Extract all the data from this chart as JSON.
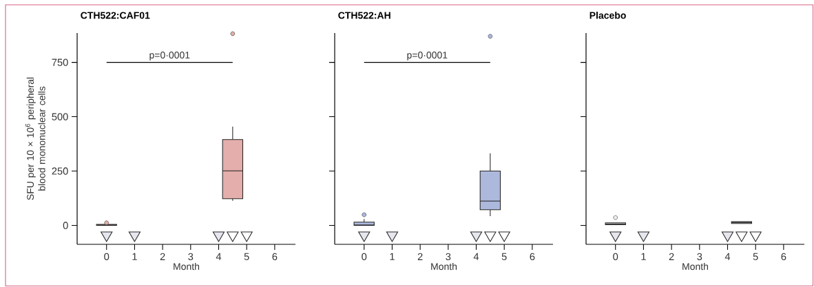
{
  "chart_data": [
    {
      "type": "box",
      "title": "CTH522:CAF01",
      "xlabel": "Month",
      "ylabel": "SFU per 10 × 10$^{6}$ peripheral blood mononuclear cells",
      "xlim": [
        -1.05,
        6.74
      ],
      "ylim": [
        -87,
        885
      ],
      "xticks": [
        0,
        1,
        2,
        3,
        4,
        5,
        6
      ],
      "yticks": [
        0,
        250,
        500,
        750
      ],
      "annotations": [
        "p=0·0001"
      ],
      "series": [
        {
          "x": [
            0,
            4.5
          ],
          "color": "#e3aeab",
          "boxes": [
            {
              "low": 0,
              "q1": 0,
              "median": 2,
              "q3": 5,
              "high": 5,
              "outliers": [
                12
              ]
            },
            {
              "low": 113,
              "q1": 123,
              "median": 251,
              "q3": 395,
              "high": 454,
              "outliers": [
                882
              ]
            }
          ]
        },
        {
          "type": "scatter",
          "x": [
            0,
            1,
            4
          ],
          "values": [
            -45,
            -45,
            -45
          ],
          "color": "#e6e7ee",
          "marker": "triangle"
        },
        {
          "type": "scatter",
          "x": [
            4.5,
            5
          ],
          "values": [
            -45,
            -45
          ],
          "color": "#ffffff",
          "marker": "triangle"
        }
      ]
    },
    {
      "type": "box",
      "title": "CTH522:AH",
      "xlabel": "Month",
      "xlim": [
        -1.05,
        6.74
      ],
      "ylim": [
        -87,
        885
      ],
      "xticks": [
        0,
        1,
        2,
        3,
        4,
        5,
        6
      ],
      "yticks": [
        0,
        250,
        500,
        750
      ],
      "tick_labels": "x",
      "annotations": [
        "p=0·0001"
      ],
      "series": [
        {
          "x": [
            0,
            4.5
          ],
          "color": "#adb8dd",
          "boxes": [
            {
              "low": 0,
              "q1": 0,
              "median": 2,
              "q3": 15,
              "high": 29,
              "outliers": [
                49
              ]
            },
            {
              "low": 43,
              "q1": 72,
              "median": 112,
              "q3": 250,
              "high": 332,
              "outliers": [
                870
              ]
            }
          ]
        },
        {
          "type": "scatter",
          "x": [
            0,
            1,
            4
          ],
          "values": [
            -45,
            -45,
            -45
          ],
          "color": "#e6e7ee",
          "marker": "triangle"
        },
        {
          "type": "scatter",
          "x": [
            4.5,
            5
          ],
          "values": [
            -45,
            -45
          ],
          "color": "#ffffff",
          "marker": "triangle"
        }
      ]
    },
    {
      "type": "box",
      "title": "Placebo",
      "xlabel": "Month",
      "xlim": [
        -1.05,
        6.74
      ],
      "ylim": [
        -87,
        885
      ],
      "xticks": [
        0,
        1,
        2,
        3,
        4,
        5,
        6
      ],
      "yticks": [
        0,
        250,
        500,
        750
      ],
      "tick_labels": "x",
      "series": [
        {
          "x": [
            0,
            4.5
          ],
          "color": "#eeeeee",
          "boxes": [
            {
              "low": 3,
              "q1": 3,
              "median": 7,
              "q3": 12,
              "high": 12,
              "outliers": [
                36
              ]
            },
            {
              "low": 9,
              "q1": 9,
              "median": 13,
              "q3": 17,
              "high": 17
            }
          ]
        },
        {
          "type": "scatter",
          "x": [
            0,
            1,
            4
          ],
          "values": [
            -45,
            -45,
            -45
          ],
          "color": "#e6e7ee",
          "marker": "triangle"
        },
        {
          "type": "scatter",
          "x": [
            4.5,
            5
          ],
          "values": [
            -45,
            -45
          ],
          "color": "#ffffff",
          "marker": "triangle"
        }
      ]
    }
  ]
}
